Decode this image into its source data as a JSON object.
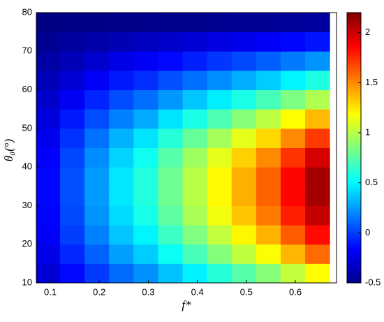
{
  "chart_data": {
    "type": "contour",
    "xlabel": "f*",
    "ylabel": "θ₀(°)",
    "x": [
      0.095,
      0.145,
      0.195,
      0.245,
      0.295,
      0.345,
      0.395,
      0.445,
      0.495,
      0.545,
      0.595,
      0.645
    ],
    "y": [
      12.5,
      17.5,
      22.5,
      27.5,
      32.5,
      37.5,
      42.5,
      47.5,
      52.5,
      57.5,
      62.5,
      67.5,
      72.5,
      77.5
    ],
    "z": [
      [
        -0.27,
        -0.14,
        -0.01,
        0.12,
        0.22,
        0.35,
        0.48,
        0.61,
        0.74,
        0.87,
        1.03,
        1.19
      ],
      [
        -0.22,
        -0.06,
        0.1,
        0.26,
        0.38,
        0.54,
        0.7,
        0.86,
        1.02,
        1.18,
        1.38,
        1.58
      ],
      [
        -0.18,
        0,
        0.18,
        0.36,
        0.49,
        0.67,
        0.85,
        1.03,
        1.21,
        1.39,
        1.62,
        1.84
      ],
      [
        -0.16,
        0.03,
        0.23,
        0.42,
        0.57,
        0.76,
        0.96,
        1.15,
        1.34,
        1.54,
        1.78,
        2.02
      ],
      [
        -0.15,
        0.05,
        0.25,
        0.45,
        0.6,
        0.8,
        1,
        1.2,
        1.4,
        1.6,
        1.85,
        2.1
      ],
      [
        -0.15,
        0.05,
        0.25,
        0.45,
        0.6,
        0.8,
        1,
        1.2,
        1.4,
        1.6,
        1.85,
        2.1
      ],
      [
        -0.17,
        0.02,
        0.21,
        0.4,
        0.55,
        0.74,
        0.93,
        1.12,
        1.31,
        1.5,
        1.73,
        1.97
      ],
      [
        -0.2,
        -0.03,
        0.14,
        0.31,
        0.44,
        0.61,
        0.78,
        0.95,
        1.12,
        1.29,
        1.5,
        1.71
      ],
      [
        -0.25,
        -0.1,
        0.04,
        0.18,
        0.29,
        0.44,
        0.58,
        0.72,
        0.87,
        1.01,
        1.19,
        1.37
      ],
      [
        -0.3,
        -0.19,
        -0.07,
        0.04,
        0.13,
        0.24,
        0.36,
        0.47,
        0.58,
        0.7,
        0.84,
        0.98
      ],
      [
        -0.35,
        -0.27,
        -0.18,
        -0.1,
        -0.04,
        0.05,
        0.13,
        0.21,
        0.3,
        0.38,
        0.49,
        0.59
      ],
      [
        -0.4,
        -0.35,
        -0.29,
        -0.23,
        -0.19,
        -0.14,
        -0.08,
        -0.02,
        0.03,
        0.09,
        0.16,
        0.23
      ],
      [
        -0.45,
        -0.42,
        -0.39,
        -0.36,
        -0.33,
        -0.3,
        -0.27,
        -0.24,
        -0.21,
        -0.18,
        -0.15,
        -0.11
      ],
      [
        -0.49,
        -0.48,
        -0.48,
        -0.47,
        -0.47,
        -0.46,
        -0.46,
        -0.45,
        -0.44,
        -0.44,
        -0.43,
        -0.42
      ]
    ],
    "xlim": [
      0.0715,
      0.684
    ],
    "xticks": [
      0.1,
      0.2,
      0.3,
      0.4,
      0.5,
      0.6
    ],
    "ylim": [
      10,
      80
    ],
    "yticks": [
      10,
      20,
      30,
      40,
      50,
      60,
      70,
      80
    ],
    "clim": [
      -0.5,
      2.2
    ],
    "cticks": [
      -0.5,
      0,
      0.5,
      1,
      1.5,
      2
    ],
    "colormap": "jet"
  }
}
